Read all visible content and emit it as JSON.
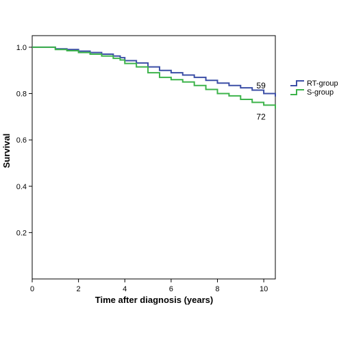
{
  "chart_data": {
    "type": "line",
    "step": true,
    "xlabel": "Time after diagnosis (years)",
    "ylabel": "Survival",
    "xlim": [
      0,
      10.5
    ],
    "ylim": [
      0,
      1.05
    ],
    "x_ticks": [
      0,
      2,
      4,
      6,
      8,
      10
    ],
    "y_ticks": [
      0.2,
      0.4,
      0.6,
      0.8,
      1.0
    ],
    "x_tick_labels": [
      "0",
      "2",
      "4",
      "6",
      "8",
      "10"
    ],
    "y_tick_labels": [
      "0.2",
      "0.4",
      "0.6",
      "0.8",
      "1.0"
    ],
    "grid": false,
    "legend": "right",
    "series": [
      {
        "name": "RT-group",
        "color": "#3b4ea6",
        "end_label": "59",
        "x": [
          0,
          0.5,
          1.0,
          1.5,
          2.0,
          2.5,
          3.0,
          3.5,
          3.8,
          4.0,
          4.5,
          5.0,
          5.5,
          6.0,
          6.5,
          7.0,
          7.5,
          8.0,
          8.5,
          9.0,
          9.5,
          10.0,
          10.5
        ],
        "y": [
          1.0,
          1.0,
          0.993,
          0.99,
          0.983,
          0.977,
          0.97,
          0.962,
          0.955,
          0.942,
          0.932,
          0.915,
          0.9,
          0.89,
          0.88,
          0.87,
          0.857,
          0.845,
          0.835,
          0.825,
          0.815,
          0.8,
          0.787
        ]
      },
      {
        "name": "S-group",
        "color": "#3cb34a",
        "end_label": "72",
        "x": [
          0,
          0.5,
          1.0,
          1.5,
          2.0,
          2.5,
          3.0,
          3.5,
          3.8,
          4.0,
          4.5,
          5.0,
          5.5,
          6.0,
          6.5,
          7.0,
          7.5,
          8.0,
          8.5,
          9.0,
          9.5,
          10.0,
          10.5
        ],
        "y": [
          1.0,
          1.0,
          0.99,
          0.985,
          0.977,
          0.97,
          0.962,
          0.952,
          0.945,
          0.93,
          0.915,
          0.89,
          0.87,
          0.86,
          0.85,
          0.835,
          0.818,
          0.8,
          0.79,
          0.775,
          0.762,
          0.75,
          0.735
        ]
      }
    ]
  }
}
